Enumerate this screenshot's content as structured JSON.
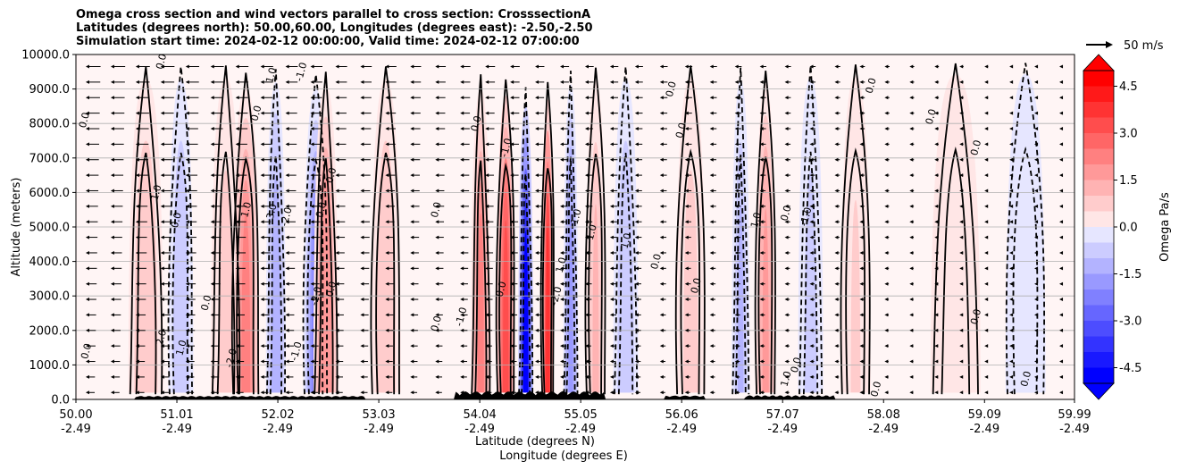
{
  "chart_data": {
    "type": "heatmap",
    "title_lines": [
      "Omega cross section and wind vectors parallel to cross section: CrosssectionA",
      "Latitudes (degrees north): 50.00,60.00, Longitudes (degrees east): -2.50,-2.50",
      "Simulation start time: 2024-02-12 00:00:00, Valid time: 2024-02-12 07:00:00"
    ],
    "ylabel": "Altitude (meters)",
    "xlabel_line1": "Latitude (degrees N)",
    "xlabel_line2": "Longitude (degrees E)",
    "x_range": [
      50.0,
      59.99
    ],
    "ylim": [
      0,
      10000
    ],
    "grid": "horizontal",
    "y_ticks": [
      "0.0",
      "1000.0",
      "2000.0",
      "3000.0",
      "4000.0",
      "5000.0",
      "6000.0",
      "7000.0",
      "8000.0",
      "9000.0",
      "10000.0"
    ],
    "x_ticks": [
      {
        "lat": "50.00",
        "lon": "-2.49"
      },
      {
        "lat": "51.01",
        "lon": "-2.49"
      },
      {
        "lat": "52.02",
        "lon": "-2.49"
      },
      {
        "lat": "53.03",
        "lon": "-2.49"
      },
      {
        "lat": "54.04",
        "lon": "-2.49"
      },
      {
        "lat": "55.05",
        "lon": "-2.49"
      },
      {
        "lat": "56.06",
        "lon": "-2.49"
      },
      {
        "lat": "57.07",
        "lon": "-2.49"
      },
      {
        "lat": "58.08",
        "lon": "-2.49"
      },
      {
        "lat": "59.09",
        "lon": "-2.49"
      },
      {
        "lat": "59.99",
        "lon": "-2.49"
      }
    ],
    "colorbar": {
      "label": "Omega Pa/s",
      "range": [
        -5.0,
        5.0
      ],
      "ticks": [
        "-4.5",
        "-3.0",
        "-1.5",
        "0.0",
        "1.5",
        "3.0",
        "4.5"
      ],
      "negative_color": "#0000ff",
      "positive_color": "#ff0000",
      "extend": "both"
    },
    "quiver_key": "50 m/s",
    "omega_bands": [
      {
        "center": 50.7,
        "width": 0.35,
        "value": 1.0
      },
      {
        "center": 51.05,
        "width": 0.25,
        "value": -1.0
      },
      {
        "center": 51.5,
        "width": 0.3,
        "value": 0.8
      },
      {
        "center": 51.7,
        "width": 0.28,
        "value": 2.2
      },
      {
        "center": 52.0,
        "width": 0.2,
        "value": -1.5
      },
      {
        "center": 52.4,
        "width": 0.25,
        "value": -2.5
      },
      {
        "center": 52.5,
        "width": 0.25,
        "value": 2.0
      },
      {
        "center": 53.1,
        "width": 0.3,
        "value": 1.0
      },
      {
        "center": 54.05,
        "width": 0.2,
        "value": 2.5
      },
      {
        "center": 54.3,
        "width": 0.18,
        "value": 3.5
      },
      {
        "center": 54.5,
        "width": 0.15,
        "value": -5.0
      },
      {
        "center": 54.72,
        "width": 0.12,
        "value": 4.0
      },
      {
        "center": 54.95,
        "width": 0.15,
        "value": -1.8
      },
      {
        "center": 55.2,
        "width": 0.2,
        "value": 1.2
      },
      {
        "center": 55.5,
        "width": 0.25,
        "value": -1.0
      },
      {
        "center": 56.15,
        "width": 0.3,
        "value": 0.8
      },
      {
        "center": 56.65,
        "width": 0.18,
        "value": -1.2
      },
      {
        "center": 56.9,
        "width": 0.2,
        "value": 1.8
      },
      {
        "center": 57.35,
        "width": 0.25,
        "value": -0.8
      },
      {
        "center": 57.8,
        "width": 0.3,
        "value": 0.6
      },
      {
        "center": 58.8,
        "width": 0.5,
        "value": 0.4
      },
      {
        "center": 59.5,
        "width": 0.4,
        "value": -0.3
      }
    ],
    "contour_labels": [
      {
        "lat": 50.08,
        "alt": 8100,
        "text": "0.0"
      },
      {
        "lat": 50.1,
        "alt": 1400,
        "text": "0.0"
      },
      {
        "lat": 50.85,
        "alt": 9800,
        "text": "0.0"
      },
      {
        "lat": 50.8,
        "alt": 6000,
        "text": "1.0"
      },
      {
        "lat": 51.0,
        "alt": 5200,
        "text": "0.0"
      },
      {
        "lat": 50.85,
        "alt": 1800,
        "text": "2.0"
      },
      {
        "lat": 51.05,
        "alt": 1500,
        "text": "1.0"
      },
      {
        "lat": 51.3,
        "alt": 2800,
        "text": "0.0"
      },
      {
        "lat": 51.55,
        "alt": 1200,
        "text": "-2.0"
      },
      {
        "lat": 51.7,
        "alt": 5500,
        "text": "1.0"
      },
      {
        "lat": 51.95,
        "alt": 5400,
        "text": "-3.0"
      },
      {
        "lat": 51.95,
        "alt": 9400,
        "text": "1.0"
      },
      {
        "lat": 51.8,
        "alt": 8300,
        "text": "0.0"
      },
      {
        "lat": 52.1,
        "alt": 5300,
        "text": "-2.0"
      },
      {
        "lat": 52.25,
        "alt": 9500,
        "text": "-1.0"
      },
      {
        "lat": 52.45,
        "alt": 5500,
        "text": "0.0"
      },
      {
        "lat": 52.2,
        "alt": 1400,
        "text": "-1.0"
      },
      {
        "lat": 52.4,
        "alt": 3000,
        "text": "-2.0"
      },
      {
        "lat": 52.55,
        "alt": 3200,
        "text": "0.0"
      },
      {
        "lat": 52.55,
        "alt": 6500,
        "text": "0.0"
      },
      {
        "lat": 53.6,
        "alt": 5500,
        "text": "0.0"
      },
      {
        "lat": 53.6,
        "alt": 2200,
        "text": "0.0"
      },
      {
        "lat": 53.85,
        "alt": 2400,
        "text": "-1.0"
      },
      {
        "lat": 54.3,
        "alt": 7300,
        "text": "-1.0"
      },
      {
        "lat": 54.0,
        "alt": 8000,
        "text": "0.0"
      },
      {
        "lat": 54.25,
        "alt": 3200,
        "text": "0.0"
      },
      {
        "lat": 54.8,
        "alt": 3000,
        "text": "-2.0"
      },
      {
        "lat": 54.85,
        "alt": 3900,
        "text": "1.0"
      },
      {
        "lat": 55.0,
        "alt": 5300,
        "text": "1.0"
      },
      {
        "lat": 55.15,
        "alt": 4800,
        "text": "-1.0"
      },
      {
        "lat": 55.5,
        "alt": 4600,
        "text": "1.0"
      },
      {
        "lat": 55.8,
        "alt": 4000,
        "text": "0.0"
      },
      {
        "lat": 56.05,
        "alt": 7800,
        "text": "0.0"
      },
      {
        "lat": 55.95,
        "alt": 9000,
        "text": "0.0"
      },
      {
        "lat": 56.2,
        "alt": 3300,
        "text": "0.0"
      },
      {
        "lat": 56.8,
        "alt": 5200,
        "text": "1.0"
      },
      {
        "lat": 57.1,
        "alt": 5400,
        "text": "0.0"
      },
      {
        "lat": 57.3,
        "alt": 5300,
        "text": "-1.0"
      },
      {
        "lat": 57.2,
        "alt": 1000,
        "text": "0.0"
      },
      {
        "lat": 57.1,
        "alt": 600,
        "text": "1.0"
      },
      {
        "lat": 57.95,
        "alt": 9100,
        "text": "0.0"
      },
      {
        "lat": 58.55,
        "alt": 8200,
        "text": "0.0"
      },
      {
        "lat": 58.0,
        "alt": 300,
        "text": "0.0"
      },
      {
        "lat": 59.0,
        "alt": 7300,
        "text": "0.0"
      },
      {
        "lat": 59.0,
        "alt": 2400,
        "text": "0.0"
      },
      {
        "lat": 59.5,
        "alt": 600,
        "text": "0.0"
      }
    ]
  }
}
